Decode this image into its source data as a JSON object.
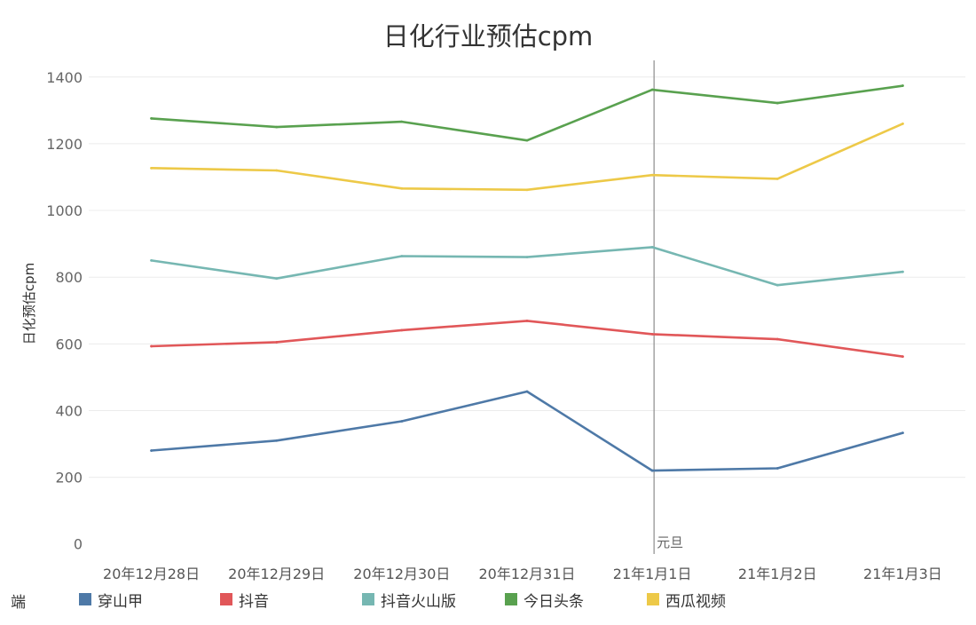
{
  "chart_data": {
    "type": "line",
    "title": "日化行业预估cpm",
    "ylabel": "日化预估cpm",
    "xlabel": "",
    "categories": [
      "20年12月28日",
      "20年12月29日",
      "20年12月30日",
      "20年12月31日",
      "21年1月1日",
      "21年1月2日",
      "21年1月3日"
    ],
    "ylim": [
      -30,
      1450
    ],
    "yticks": [
      0,
      200,
      400,
      600,
      800,
      1000,
      1200,
      1400
    ],
    "grid": true,
    "legend_title": "端",
    "legend_position": "bottom",
    "series": [
      {
        "name": "穿山甲",
        "color": "#4e79a7",
        "values": [
          280,
          310,
          368,
          457,
          220,
          227,
          333
        ]
      },
      {
        "name": "抖音",
        "color": "#e15759",
        "values": [
          593,
          605,
          641,
          669,
          629,
          614,
          562
        ]
      },
      {
        "name": "抖音火山版",
        "color": "#76b7b2",
        "values": [
          850,
          796,
          863,
          860,
          890,
          776,
          816
        ]
      },
      {
        "name": "今日头条",
        "color": "#59a14f",
        "values": [
          1276,
          1250,
          1266,
          1210,
          1362,
          1322,
          1374
        ]
      },
      {
        "name": "西瓜视频",
        "color": "#edc948",
        "values": [
          1127,
          1120,
          1066,
          1062,
          1106,
          1095,
          1260
        ]
      }
    ],
    "annotations": [
      {
        "label": "元旦",
        "x": "21年1月1日"
      }
    ]
  }
}
